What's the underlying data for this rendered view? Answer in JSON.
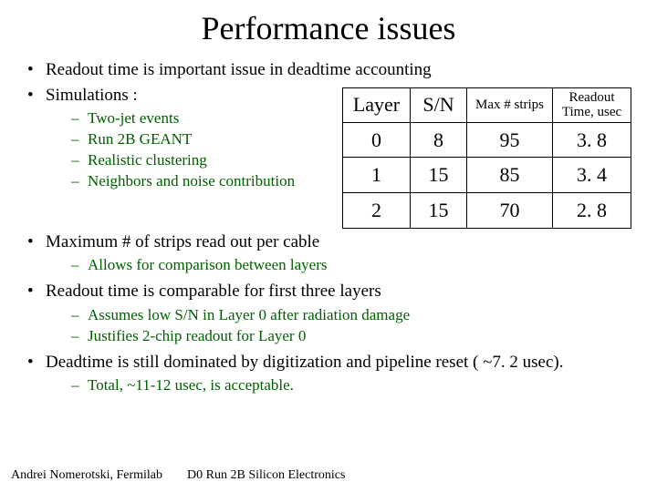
{
  "title": "Performance issues",
  "bullets": {
    "b1": "Readout time is important issue in deadtime accounting",
    "b2": "Simulations :",
    "b2_sub": {
      "s1": "Two-jet events",
      "s2": "Run 2B GEANT",
      "s3": "Realistic clustering",
      "s4": "Neighbors and noise contribution"
    },
    "b3": "Maximum # of strips read out per cable",
    "b3_sub": {
      "s1": "Allows for comparison between layers"
    },
    "b4": "Readout time is comparable for first three layers",
    "b4_sub": {
      "s1": "Assumes low S/N in Layer 0 after radiation damage",
      "s2": "Justifies 2-chip readout for Layer 0"
    },
    "b5": "Deadtime is still dominated by digitization and pipeline reset ( ~7. 2 usec).",
    "b5_sub": {
      "s1": "Total, ~11-12 usec, is acceptable."
    }
  },
  "table": {
    "headers": {
      "h1": "Layer",
      "h2": "S/N",
      "h3": "Max # strips",
      "h4a": "Readout",
      "h4b": "Time, usec"
    },
    "rows": {
      "r0": {
        "c0": "0",
        "c1": "8",
        "c2": "95",
        "c3": "3. 8"
      },
      "r1": {
        "c0": "1",
        "c1": "15",
        "c2": "85",
        "c3": "3. 4"
      },
      "r2": {
        "c0": "2",
        "c1": "15",
        "c2": "70",
        "c3": "2. 8"
      }
    }
  },
  "footer": {
    "left": "Andrei Nomerotski, Fermilab",
    "right": "D0 Run 2B Silicon Electronics"
  },
  "colors": {
    "sub_bullet": "#006000",
    "border": "#000000",
    "bg": "#ffffff"
  }
}
